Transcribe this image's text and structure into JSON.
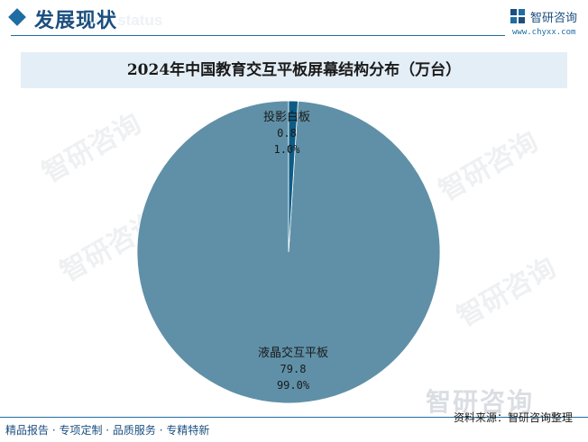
{
  "header": {
    "section_title": "发展现状",
    "section_subtitle": "ent status",
    "brand_name": "智研咨询",
    "brand_url": "www.chyxx.com"
  },
  "chart_data": {
    "type": "pie",
    "title": "2024年中国教育交互平板屏幕结构分布（万台）",
    "slices": [
      {
        "label": "液晶交互平板",
        "value": 79.8,
        "percent": "99.0%",
        "value_text": "79.8",
        "color": "#5f90a7"
      },
      {
        "label": "投影白板",
        "value": 0.8,
        "percent": "1.0%",
        "value_text": "0.8",
        "color": "#0d5c85"
      }
    ]
  },
  "watermark": {
    "logo_text": "智研咨询"
  },
  "footer": {
    "tagline": "精品报告 · 专项定制 · 品质服务 · 专精特新",
    "source": "资料来源：智研咨询整理"
  }
}
